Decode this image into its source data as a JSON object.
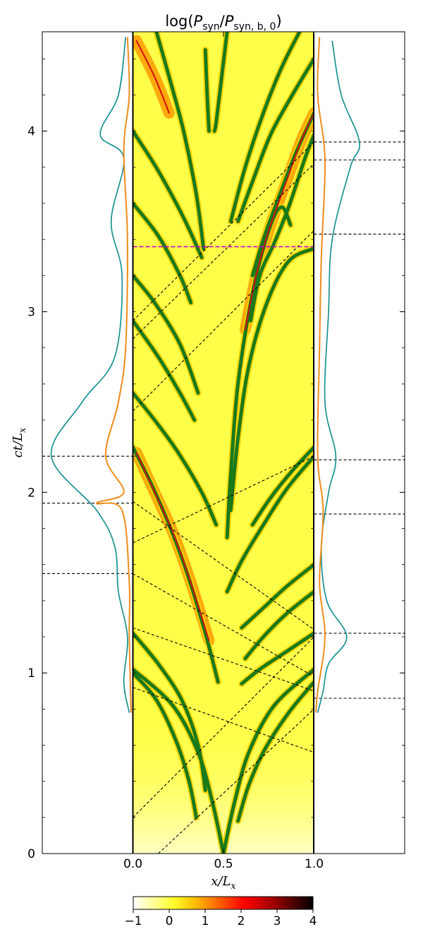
{
  "chart_data": {
    "type": "heatmap",
    "title": "log(P_syn/P_syn,b,0)",
    "title_parts": {
      "prefix": "log(",
      "p1": "P",
      "p1_sub": "syn",
      "slash": "/",
      "p2": "P",
      "p2_sub": "syn, b, 0",
      "suffix": ")"
    },
    "xlabel": "x/L_x",
    "xlabel_parts": {
      "main": "x/L",
      "sub": "x"
    },
    "ylabel": "ct/L_x",
    "ylabel_parts": {
      "main": "ct/L",
      "sub": "x"
    },
    "xlim": [
      -0.5,
      1.5
    ],
    "ylim": [
      0,
      4.55
    ],
    "x_ticks": [
      0.0,
      0.5,
      1.0
    ],
    "x_tick_labels": [
      "0.0",
      "0.5",
      "1.0"
    ],
    "y_ticks": [
      0,
      1,
      2,
      3,
      4
    ],
    "y_tick_labels": [
      "0",
      "1",
      "2",
      "3",
      "4"
    ],
    "colorbar": {
      "range": [
        -1,
        4
      ],
      "ticks": [
        -1,
        0,
        1,
        2,
        3,
        4
      ],
      "tick_labels": [
        "−1",
        "0",
        "1",
        "2",
        "3",
        "4"
      ],
      "colormap": "hot_r"
    },
    "colors": {
      "background": "#ffff4a",
      "shock": "#1a7a1a",
      "core": "#d41010",
      "dashed": "#000000",
      "magenta": "#cc00cc",
      "curve_teal": "#0d8c8c",
      "curve_orange": "#f08c1a"
    },
    "shock_tracks": [
      {
        "points": [
          [
            0.5,
            0.0
          ],
          [
            0.44,
            0.28
          ],
          [
            0.36,
            0.56
          ],
          [
            0.22,
            0.82
          ],
          [
            0.0,
            1.02
          ]
        ]
      },
      {
        "points": [
          [
            0.5,
            0.0
          ],
          [
            0.56,
            0.28
          ],
          [
            0.64,
            0.56
          ],
          [
            0.78,
            0.82
          ],
          [
            1.0,
            1.02
          ]
        ]
      },
      {
        "points": [
          [
            0.0,
            2.25
          ],
          [
            0.1,
            2.05
          ],
          [
            0.2,
            1.82
          ],
          [
            0.3,
            1.55
          ],
          [
            0.4,
            1.22
          ],
          [
            0.47,
            0.95
          ]
        ]
      },
      {
        "points": [
          [
            0.0,
            1.22
          ],
          [
            0.14,
            1.05
          ],
          [
            0.27,
            0.85
          ],
          [
            0.36,
            0.6
          ],
          [
            0.4,
            0.35
          ]
        ]
      },
      {
        "points": [
          [
            0.0,
            1.0
          ],
          [
            0.13,
            0.85
          ],
          [
            0.24,
            0.62
          ],
          [
            0.31,
            0.4
          ],
          [
            0.35,
            0.2
          ]
        ]
      },
      {
        "points": [
          [
            1.0,
            0.95
          ],
          [
            0.86,
            0.78
          ],
          [
            0.73,
            0.58
          ],
          [
            0.64,
            0.38
          ],
          [
            0.58,
            0.18
          ]
        ]
      },
      {
        "points": [
          [
            1.0,
            1.22
          ],
          [
            0.85,
            1.12
          ],
          [
            0.7,
            1.02
          ],
          [
            0.6,
            0.94
          ]
        ]
      },
      {
        "points": [
          [
            1.0,
            1.45
          ],
          [
            0.85,
            1.33
          ],
          [
            0.72,
            1.2
          ],
          [
            0.62,
            1.08
          ]
        ]
      },
      {
        "points": [
          [
            1.0,
            1.6
          ],
          [
            0.85,
            1.48
          ],
          [
            0.72,
            1.36
          ],
          [
            0.6,
            1.25
          ]
        ]
      },
      {
        "points": [
          [
            1.0,
            2.2
          ],
          [
            0.85,
            2.02
          ],
          [
            0.72,
            1.82
          ],
          [
            0.6,
            1.62
          ],
          [
            0.52,
            1.45
          ]
        ]
      },
      {
        "points": [
          [
            1.0,
            2.25
          ],
          [
            0.88,
            2.12
          ],
          [
            0.76,
            1.97
          ],
          [
            0.66,
            1.82
          ]
        ]
      },
      {
        "points": [
          [
            0.0,
            2.55
          ],
          [
            0.12,
            2.4
          ],
          [
            0.25,
            2.22
          ],
          [
            0.38,
            2.0
          ],
          [
            0.46,
            1.82
          ]
        ]
      },
      {
        "points": [
          [
            0.0,
            2.95
          ],
          [
            0.14,
            2.75
          ],
          [
            0.26,
            2.55
          ],
          [
            0.34,
            2.4
          ]
        ]
      },
      {
        "points": [
          [
            0.0,
            3.2
          ],
          [
            0.12,
            3.05
          ],
          [
            0.26,
            2.82
          ],
          [
            0.36,
            2.55
          ]
        ]
      },
      {
        "points": [
          [
            0.52,
            1.75
          ],
          [
            0.54,
            2.1
          ],
          [
            0.58,
            2.6
          ],
          [
            0.66,
            3.1
          ],
          [
            0.75,
            3.45
          ],
          [
            0.82,
            3.58
          ],
          [
            0.87,
            3.48
          ]
        ]
      },
      {
        "points": [
          [
            0.54,
            1.9
          ],
          [
            0.58,
            2.3
          ],
          [
            0.64,
            2.7
          ],
          [
            0.74,
            3.05
          ],
          [
            0.86,
            3.28
          ],
          [
            1.0,
            3.35
          ]
        ]
      },
      {
        "points": [
          [
            0.0,
            4.0
          ],
          [
            0.14,
            3.78
          ],
          [
            0.28,
            3.52
          ],
          [
            0.38,
            3.3
          ]
        ]
      },
      {
        "points": [
          [
            0.0,
            3.6
          ],
          [
            0.14,
            3.42
          ],
          [
            0.26,
            3.2
          ],
          [
            0.32,
            3.05
          ]
        ]
      },
      {
        "points": [
          [
            0.13,
            4.55
          ],
          [
            0.2,
            4.3
          ],
          [
            0.28,
            4.0
          ],
          [
            0.35,
            3.65
          ],
          [
            0.39,
            3.35
          ]
        ]
      },
      {
        "points": [
          [
            0.4,
            4.45
          ],
          [
            0.41,
            4.2
          ],
          [
            0.42,
            4.0
          ]
        ]
      },
      {
        "points": [
          [
            0.52,
            4.55
          ],
          [
            0.49,
            4.3
          ],
          [
            0.46,
            4.05
          ],
          [
            0.45,
            4.0
          ]
        ]
      },
      {
        "points": [
          [
            0.92,
            4.55
          ],
          [
            0.82,
            4.35
          ],
          [
            0.72,
            4.1
          ],
          [
            0.62,
            3.8
          ],
          [
            0.54,
            3.5
          ]
        ]
      },
      {
        "points": [
          [
            1.0,
            4.4
          ],
          [
            0.88,
            4.2
          ],
          [
            0.76,
            3.98
          ],
          [
            0.66,
            3.72
          ],
          [
            0.58,
            3.5
          ]
        ]
      },
      {
        "points": [
          [
            1.0,
            4.1
          ],
          [
            0.9,
            3.88
          ],
          [
            0.8,
            3.62
          ],
          [
            0.72,
            3.4
          ],
          [
            0.66,
            3.2
          ]
        ]
      },
      {
        "points": [
          [
            0.65,
            2.95
          ],
          [
            0.7,
            3.2
          ],
          [
            0.78,
            3.38
          ],
          [
            0.86,
            3.58
          ],
          [
            0.95,
            3.85
          ],
          [
            1.0,
            3.98
          ]
        ]
      }
    ],
    "hot_regions": [
      {
        "points": [
          [
            0.02,
            2.22
          ],
          [
            0.12,
            2.0
          ],
          [
            0.22,
            1.78
          ],
          [
            0.32,
            1.5
          ],
          [
            0.42,
            1.18
          ]
        ]
      },
      {
        "points": [
          [
            0.62,
            2.9
          ],
          [
            0.68,
            3.2
          ],
          [
            0.75,
            3.45
          ],
          [
            0.84,
            3.7
          ],
          [
            0.93,
            3.95
          ],
          [
            1.0,
            4.1
          ]
        ]
      },
      {
        "points": [
          [
            0.02,
            4.5
          ],
          [
            0.12,
            4.3
          ],
          [
            0.2,
            4.1
          ]
        ]
      }
    ],
    "dashed_diagonals": [
      {
        "points": [
          [
            0.14,
            0.0
          ],
          [
            1.0,
            0.8
          ]
        ]
      },
      {
        "points": [
          [
            0.0,
            0.2
          ],
          [
            1.0,
            1.2
          ]
        ]
      },
      {
        "points": [
          [
            0.0,
            0.92
          ],
          [
            1.0,
            0.56
          ]
        ]
      },
      {
        "points": [
          [
            0.0,
            1.25
          ],
          [
            1.0,
            0.9
          ]
        ]
      },
      {
        "points": [
          [
            0.0,
            1.55
          ],
          [
            1.0,
            0.98
          ]
        ]
      },
      {
        "points": [
          [
            0.0,
            1.95
          ],
          [
            1.0,
            1.24
          ]
        ]
      },
      {
        "points": [
          [
            0.0,
            1.72
          ],
          [
            1.0,
            2.2
          ]
        ]
      },
      {
        "points": [
          [
            0.0,
            2.45
          ],
          [
            1.0,
            3.45
          ]
        ]
      },
      {
        "points": [
          [
            0.0,
            2.85
          ],
          [
            1.0,
            3.82
          ]
        ]
      },
      {
        "points": [
          [
            0.0,
            2.95
          ],
          [
            1.0,
            3.94
          ]
        ]
      }
    ],
    "magenta_line_y": 3.36,
    "left_marker_lines_y": [
      2.2,
      1.94,
      1.55
    ],
    "right_marker_lines_y": [
      3.94,
      3.84,
      3.43,
      2.18,
      1.88,
      1.22,
      0.86
    ],
    "left_curve_teal": {
      "points": [
        [
          -0.02,
          0.78
        ],
        [
          -0.05,
          0.95
        ],
        [
          -0.03,
          1.2
        ],
        [
          -0.08,
          1.45
        ],
        [
          -0.1,
          1.7
        ],
        [
          -0.2,
          1.9
        ],
        [
          -0.45,
          2.2
        ],
        [
          -0.28,
          2.5
        ],
        [
          -0.1,
          2.75
        ],
        [
          -0.06,
          3.2
        ],
        [
          -0.12,
          3.5
        ],
        [
          -0.05,
          3.85
        ],
        [
          -0.18,
          3.98
        ],
        [
          -0.08,
          4.2
        ],
        [
          -0.04,
          4.52
        ]
      ]
    },
    "left_curve_orange": {
      "points": [
        [
          -0.01,
          0.78
        ],
        [
          -0.02,
          1.2
        ],
        [
          -0.02,
          1.5
        ],
        [
          -0.06,
          1.9
        ],
        [
          -0.2,
          1.94
        ],
        [
          -0.05,
          2.0
        ],
        [
          -0.15,
          2.2
        ],
        [
          -0.08,
          2.5
        ],
        [
          -0.04,
          2.8
        ],
        [
          -0.03,
          3.4
        ],
        [
          -0.05,
          3.9
        ],
        [
          -0.02,
          4.2
        ],
        [
          -0.03,
          4.52
        ]
      ]
    },
    "right_curve_teal": {
      "points": [
        [
          1.02,
          0.78
        ],
        [
          1.05,
          0.9
        ],
        [
          1.08,
          1.05
        ],
        [
          1.18,
          1.2
        ],
        [
          1.07,
          1.4
        ],
        [
          1.04,
          1.7
        ],
        [
          1.08,
          2.0
        ],
        [
          1.12,
          2.2
        ],
        [
          1.06,
          2.5
        ],
        [
          1.08,
          3.0
        ],
        [
          1.1,
          3.4
        ],
        [
          1.2,
          3.8
        ],
        [
          1.25,
          3.94
        ],
        [
          1.15,
          4.2
        ],
        [
          1.1,
          4.5
        ]
      ]
    },
    "right_curve_orange": {
      "points": [
        [
          1.01,
          0.78
        ],
        [
          1.02,
          0.9
        ],
        [
          1.06,
          1.2
        ],
        [
          1.03,
          1.5
        ],
        [
          1.05,
          1.9
        ],
        [
          1.02,
          2.2
        ],
        [
          1.03,
          2.8
        ],
        [
          1.04,
          3.3
        ],
        [
          1.06,
          3.84
        ],
        [
          1.02,
          4.2
        ],
        [
          1.03,
          4.52
        ]
      ]
    }
  }
}
